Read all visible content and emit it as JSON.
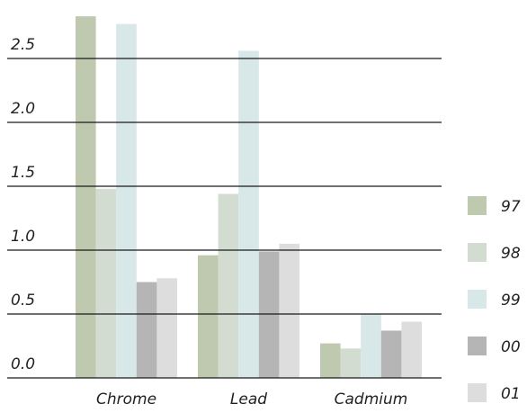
{
  "chart_data": {
    "type": "bar",
    "title": "",
    "xlabel": "",
    "ylabel": "",
    "categories": [
      "Chrome",
      "Lead",
      "Cadmium"
    ],
    "series": [
      {
        "name": "97",
        "color": "#bfc9af",
        "values": [
          2.83,
          0.96,
          0.27
        ]
      },
      {
        "name": "98",
        "color": "#d3dcd0",
        "values": [
          1.48,
          1.44,
          0.23
        ]
      },
      {
        "name": "99",
        "color": "#d8e7e7",
        "values": [
          2.77,
          2.56,
          0.5
        ]
      },
      {
        "name": "00",
        "color": "#b5b5b5",
        "values": [
          0.75,
          0.99,
          0.37
        ]
      },
      {
        "name": "01",
        "color": "#dddddd",
        "values": [
          0.78,
          1.05,
          0.44
        ]
      }
    ],
    "yticks": [
      "0.0",
      "0.5",
      "1.0",
      "1.5",
      "2.0",
      "2.5"
    ],
    "ylim": [
      0,
      2.9
    ],
    "grid": true,
    "legend_position": "right"
  }
}
